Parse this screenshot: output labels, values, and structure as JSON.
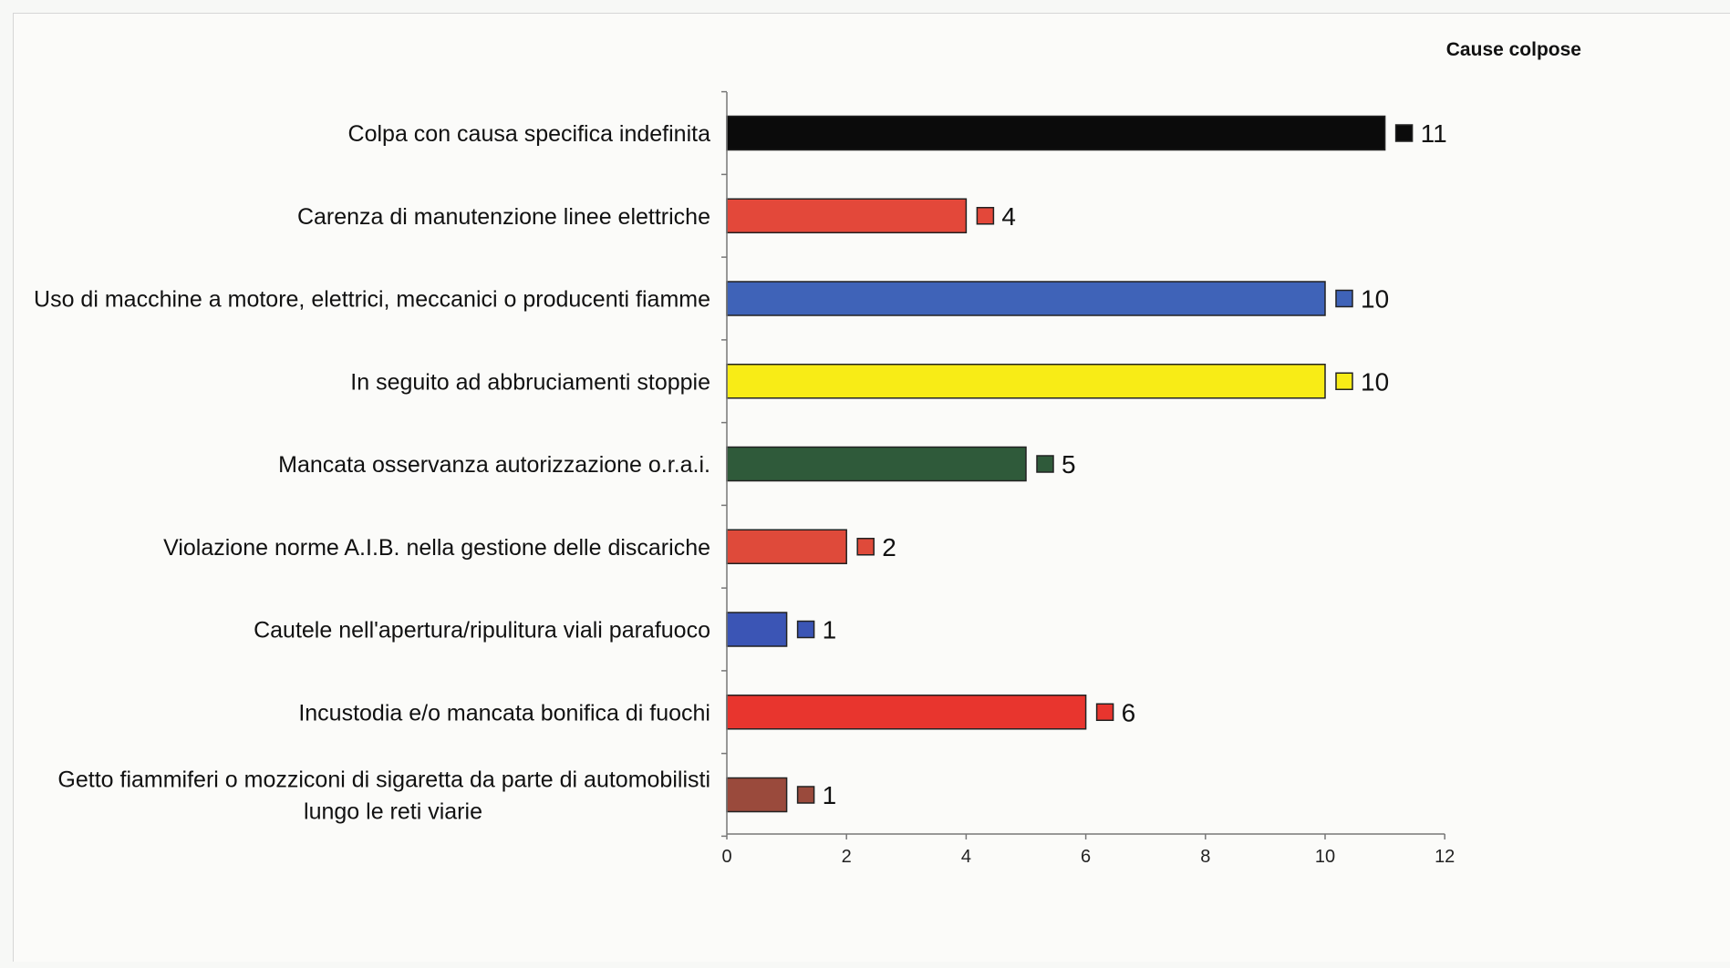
{
  "chart_data": {
    "type": "bar",
    "orientation": "horizontal",
    "title": "",
    "legend": {
      "label": "Cause colpose",
      "placement": "top-right"
    },
    "categories": [
      [
        "Colpa con causa specifica indefinita"
      ],
      [
        "Carenza di manutenzione linee elettriche"
      ],
      [
        "Uso di macchine a motore, elettrici, meccanici o producenti fiamme"
      ],
      [
        "In seguito ad abbruciamenti stoppie"
      ],
      [
        "Mancata osservanza autorizzazione o.r.a.i."
      ],
      [
        "Violazione norme A.I.B. nella gestione delle discariche"
      ],
      [
        "Cautele nell'apertura/ripulitura viali parafuoco"
      ],
      [
        "Incustodia e/o mancata bonifica di fuochi"
      ],
      [
        "Getto fiammiferi o mozziconi di sigaretta da parte di automobilisti",
        "lungo le reti viarie"
      ]
    ],
    "values": [
      11,
      4,
      10,
      10,
      5,
      2,
      1,
      6,
      1
    ],
    "colors": [
      "#0b0b0b",
      "#e3483a",
      "#3f63b8",
      "#f8ec16",
      "#2f5a3a",
      "#df4a3a",
      "#3b55b5",
      "#e8352e",
      "#9a4a3c"
    ],
    "xlim": [
      0,
      12
    ],
    "xticks": [
      0,
      2,
      4,
      6,
      8,
      10,
      12
    ],
    "xlabel": "",
    "ylabel": "",
    "grid": false
  }
}
